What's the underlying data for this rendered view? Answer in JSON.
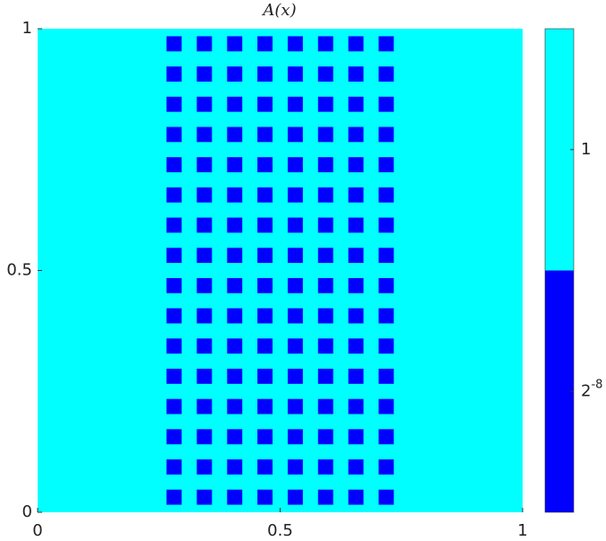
{
  "chart_data": {
    "type": "heatmap",
    "title": "A(x)",
    "xlim": [
      0,
      1
    ],
    "ylim": [
      0,
      1
    ],
    "xticks": [
      0,
      0.5,
      1
    ],
    "yticks": [
      0,
      0.5,
      1
    ],
    "background": {
      "value": 1,
      "color": "#00ffff"
    },
    "inclusion": {
      "value": 0.00390625,
      "color": "#0000ff",
      "size": 0.03125,
      "x": [
        0.28125,
        0.34375,
        0.40625,
        0.46875,
        0.53125,
        0.59375,
        0.65625,
        0.71875
      ],
      "y": [
        0.03125,
        0.09375,
        0.15625,
        0.21875,
        0.28125,
        0.34375,
        0.40625,
        0.46875,
        0.53125,
        0.59375,
        0.65625,
        0.71875,
        0.78125,
        0.84375,
        0.90625,
        0.96875
      ]
    },
    "colorbar": {
      "ticks": [
        {
          "value": 0.00390625,
          "base": 2,
          "exponent": -8
        },
        1
      ]
    }
  }
}
